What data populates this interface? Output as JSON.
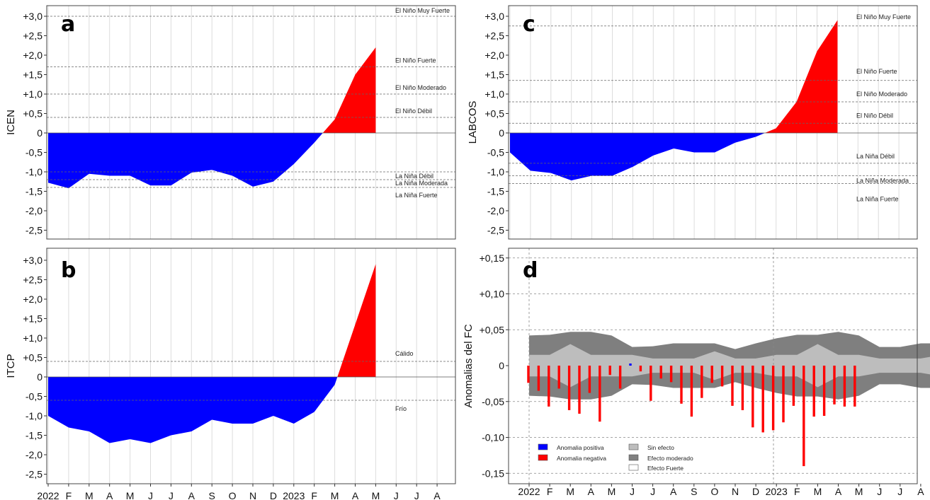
{
  "chart_data": [
    {
      "panel": "a",
      "type": "area",
      "ylabel": "ICEN",
      "ylim": [
        -2.75,
        3.1
      ],
      "yticks": [
        "+3,0",
        "+2,5",
        "+2,0",
        "+1,5",
        "+1,0",
        "+0,5",
        "0",
        "-0,5",
        "-1,0",
        "-1,5",
        "-2,0",
        "-2,5"
      ],
      "xticks": [
        "2022",
        "F",
        "M",
        "A",
        "M",
        "J",
        "J",
        "A",
        "S",
        "O",
        "N",
        "D",
        "2023",
        "F",
        "M",
        "A",
        "M",
        "J",
        "J",
        "A"
      ],
      "values": [
        -1.28,
        -1.42,
        -1.05,
        -1.1,
        -1.1,
        -1.35,
        -1.35,
        -1.02,
        -0.95,
        -1.1,
        -1.38,
        -1.25,
        -0.8,
        -0.25,
        0.35,
        1.5,
        2.2
      ],
      "thresholds": [
        {
          "value": 3.0,
          "label": "El Niño Muy Fuerte"
        },
        {
          "value": 1.7,
          "label": "El Niño Fuerte"
        },
        {
          "value": 1.0,
          "label": "El Niño Moderado"
        },
        {
          "value": 0.4,
          "label": "El Niño Débil"
        },
        {
          "value": -1.0,
          "label": "La Niña Débil"
        },
        {
          "value": -1.2,
          "label": "La Niña Moderada"
        },
        {
          "value": -1.4,
          "label": "La Niña Fuerte"
        }
      ],
      "colors": {
        "positive": "#ff0000",
        "negative": "#0000ff"
      }
    },
    {
      "panel": "b",
      "type": "area",
      "ylabel": "ITCP",
      "ylim": [
        -2.75,
        3.1
      ],
      "yticks": [
        "+3,0",
        "+2,5",
        "+2,0",
        "+1,5",
        "+1,0",
        "+0,5",
        "0",
        "-0,5",
        "-1,0",
        "-1,5",
        "-2,0",
        "-2,5"
      ],
      "xticks": [
        "2022",
        "F",
        "M",
        "A",
        "M",
        "J",
        "J",
        "A",
        "S",
        "O",
        "N",
        "D",
        "2023",
        "F",
        "M",
        "A",
        "M",
        "J",
        "J",
        "A"
      ],
      "values": [
        -1.0,
        -1.3,
        -1.4,
        -1.7,
        -1.6,
        -1.7,
        -1.5,
        -1.4,
        -1.1,
        -1.2,
        -1.2,
        -1.0,
        -1.2,
        -0.9,
        -0.2,
        1.35,
        2.9
      ],
      "thresholds": [
        {
          "value": 0.4,
          "label": "Cálido"
        },
        {
          "value": -0.6,
          "label": "Frío"
        }
      ],
      "colors": {
        "positive": "#ff0000",
        "negative": "#0000ff"
      }
    },
    {
      "panel": "c",
      "type": "area",
      "ylabel": "LABCOS",
      "ylim": [
        -2.75,
        3.1
      ],
      "yticks": [
        "+3,0",
        "+2,5",
        "+2,0",
        "+1,5",
        "+1,0",
        "+0,5",
        "0",
        "-0,5",
        "-1,0",
        "-1,5",
        "-2,0",
        "-2,5"
      ],
      "xticks": [],
      "values": [
        -0.5,
        -0.97,
        -1.03,
        -1.22,
        -1.1,
        -1.1,
        -0.87,
        -0.58,
        -0.4,
        -0.5,
        -0.5,
        -0.25,
        -0.1,
        0.12,
        0.8,
        2.1,
        2.9
      ],
      "thresholds": [
        {
          "value": 2.75,
          "label": "El Niño Muy Fuerte"
        },
        {
          "value": 1.35,
          "label": "El Niño Fuerte"
        },
        {
          "value": 0.8,
          "label": "El Niño Moderado"
        },
        {
          "value": 0.25,
          "label": "El Niño Débil"
        },
        {
          "value": -0.78,
          "label": "La Niña Débil"
        },
        {
          "value": -1.1,
          "label": "La Niña Moderada"
        },
        {
          "value": -1.3,
          "label": "La Niña Fuerte"
        }
      ],
      "colors": {
        "positive": "#ff0000",
        "negative": "#0000ff"
      }
    },
    {
      "panel": "d",
      "type": "bar",
      "ylabel": "Anomalias del FC",
      "ylim": [
        -0.16,
        0.16
      ],
      "yticks": [
        "+0,15",
        "+0,10",
        "+0,05",
        "0",
        "-0,05",
        "-0,10",
        "-0,15"
      ],
      "xticks": [
        "2022",
        "F",
        "M",
        "A",
        "M",
        "J",
        "J",
        "A",
        "S",
        "O",
        "N",
        "D",
        "2023",
        "F",
        "M",
        "A",
        "M",
        "J",
        "J",
        "A"
      ],
      "bars": [
        -0.024,
        -0.035,
        -0.057,
        -0.032,
        -0.062,
        -0.067,
        -0.038,
        -0.078,
        -0.013,
        -0.032,
        0.002,
        -0.008,
        -0.049,
        -0.018,
        -0.023,
        -0.053,
        -0.071,
        -0.045,
        -0.024,
        -0.029,
        -0.056,
        -0.062,
        -0.086,
        -0.093,
        -0.09,
        -0.079,
        -0.056,
        -0.14,
        -0.071,
        -0.07,
        -0.054,
        -0.057,
        -0.057
      ],
      "bands": {
        "light_upper": [
          0.015,
          0.015,
          0.03,
          0.015,
          0.015,
          0.015,
          0.01,
          0.01,
          0.01,
          0.02,
          0.01,
          0.01,
          0.015,
          0.015,
          0.03,
          0.015,
          0.015,
          0.01,
          0.01,
          0.01,
          0.015
        ],
        "light_lower": [
          -0.015,
          -0.015,
          -0.03,
          -0.015,
          -0.015,
          -0.015,
          -0.01,
          -0.01,
          -0.01,
          -0.02,
          -0.01,
          -0.01,
          -0.015,
          -0.015,
          -0.03,
          -0.015,
          -0.015,
          -0.01,
          -0.01,
          -0.01,
          -0.015
        ],
        "dark_upper": [
          0.042,
          0.043,
          0.047,
          0.047,
          0.042,
          0.026,
          0.027,
          0.031,
          0.031,
          0.031,
          0.023,
          0.031,
          0.038,
          0.043,
          0.043,
          0.047,
          0.042,
          0.026,
          0.026,
          0.031,
          0.031
        ],
        "dark_lower": [
          -0.042,
          -0.043,
          -0.047,
          -0.047,
          -0.042,
          -0.026,
          -0.027,
          -0.031,
          -0.031,
          -0.031,
          -0.023,
          -0.031,
          -0.038,
          -0.043,
          -0.043,
          -0.047,
          -0.042,
          -0.026,
          -0.026,
          -0.031,
          -0.031
        ]
      },
      "legend": [
        {
          "label": "Anomalia positiva",
          "color": "#0000ff"
        },
        {
          "label": "Anomalia negativa",
          "color": "#ff0000"
        },
        {
          "label": "Sin efecto",
          "color": "#bdbdbd"
        },
        {
          "label": "Efecto moderado",
          "color": "#808080"
        },
        {
          "label": "Efecto Fuerte",
          "color": "#ffffff"
        }
      ]
    }
  ],
  "panel_letters": [
    "a",
    "b",
    "c",
    "d"
  ]
}
